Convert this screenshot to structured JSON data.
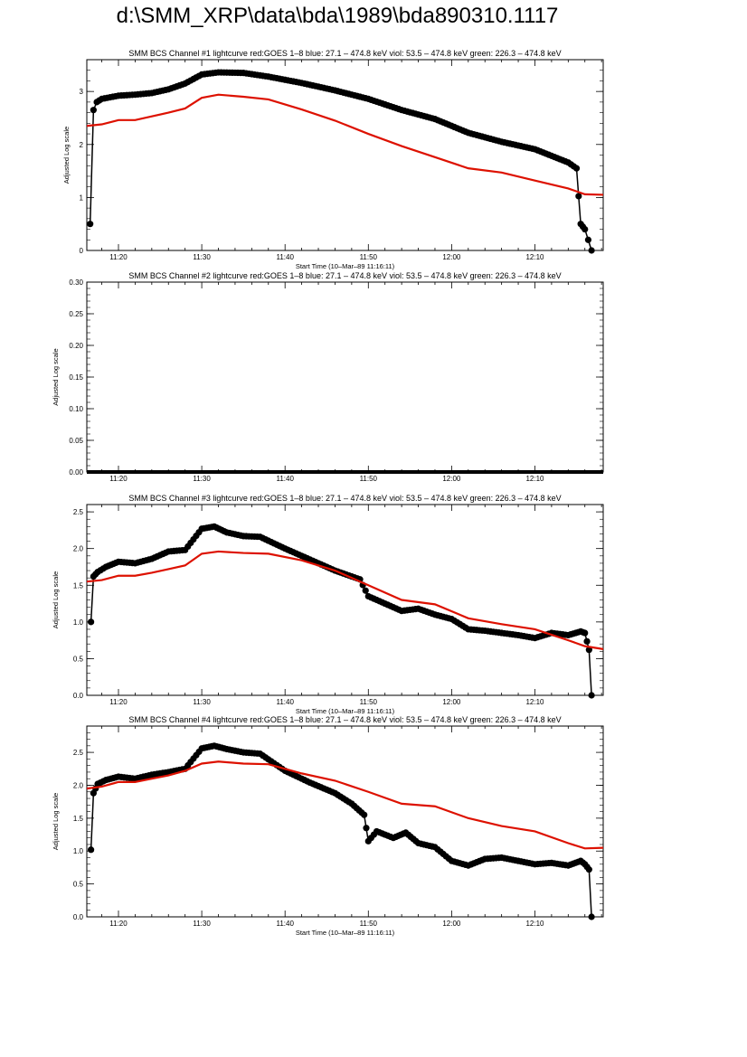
{
  "page": {
    "title": "d:\\SMM_XRP\\data\\bda\\1989\\bda890310.1117"
  },
  "legend_note": "red:GOES 1-8  blue: 27.1 – 474.8 keV  viol: 53.5 – 474.8 keV  green: 226.3 – 474.8 keV",
  "colors": {
    "goes": "#dd1100",
    "bcs": "#000000",
    "axis": "#000000"
  },
  "chart_data": [
    {
      "type": "line",
      "title": "SMM BCS Channel #1 lightcurve  red:GOES 1–8  blue: 27.1 – 474.8 keV  viol: 53.5 – 474.8 keV  green: 226.3 – 474.8 keV",
      "xlabel": "Start Time (10–Mar–89 11:16:11)",
      "ylabel": "Adjusted Log scale",
      "xlim": [
        16.2,
        78.2
      ],
      "ylim": [
        0,
        3.6
      ],
      "xticks": [
        "11:20",
        "11:30",
        "11:40",
        "11:50",
        "12:00",
        "12:10"
      ],
      "yticks": [
        "0",
        "1",
        "2",
        "3"
      ],
      "series": [
        {
          "style": "markers",
          "color": "#000000",
          "x": [
            16.6,
            17.0,
            17.4,
            18.0,
            20.0,
            22.0,
            24.0,
            26.0,
            28.0,
            30.0,
            32.0,
            35.0,
            38.0,
            42.0,
            46.0,
            50.0,
            54.0,
            58.0,
            62.0,
            66.0,
            70.0,
            74.0,
            75.0,
            75.5,
            76.0,
            76.4,
            76.8
          ],
          "y": [
            0.5,
            2.65,
            2.8,
            2.86,
            2.92,
            2.94,
            2.97,
            3.04,
            3.15,
            3.32,
            3.36,
            3.35,
            3.28,
            3.16,
            3.02,
            2.86,
            2.65,
            2.48,
            2.22,
            2.05,
            1.91,
            1.66,
            1.55,
            0.5,
            0.4,
            0.2,
            0.0
          ]
        },
        {
          "style": "line",
          "color": "#dd1100",
          "x": [
            16.2,
            18.0,
            20.0,
            22.0,
            24.0,
            26.0,
            28.0,
            30.0,
            32.0,
            35.0,
            38.0,
            42.0,
            46.0,
            50.0,
            54.0,
            58.0,
            62.0,
            66.0,
            70.0,
            74.0,
            76.0,
            78.2
          ],
          "y": [
            2.35,
            2.38,
            2.46,
            2.46,
            2.53,
            2.6,
            2.68,
            2.88,
            2.94,
            2.9,
            2.85,
            2.66,
            2.45,
            2.2,
            1.97,
            1.76,
            1.55,
            1.47,
            1.32,
            1.17,
            1.06,
            1.05
          ]
        }
      ]
    },
    {
      "type": "line",
      "title": "SMM BCS Channel #2 lightcurve  red:GOES 1–8  blue: 27.1 – 474.8 keV  viol: 53.5 – 474.8 keV  green: 226.3 – 474.8 keV",
      "xlabel": "",
      "ylabel": "Adjusted Log scale",
      "xlim": [
        16.2,
        78.2
      ],
      "ylim": [
        0,
        0.3
      ],
      "xticks": [
        "11:20",
        "11:30",
        "11:40",
        "11:50",
        "12:00",
        "12:10"
      ],
      "yticks": [
        "0.00",
        "0.05",
        "0.10",
        "0.15",
        "0.20",
        "0.25",
        "0.30"
      ],
      "series": [
        {
          "style": "flat",
          "color": "#000000",
          "x": [
            16.2,
            78.2
          ],
          "y": [
            0,
            0
          ]
        }
      ]
    },
    {
      "type": "line",
      "title": "SMM BCS Channel #3 lightcurve  red:GOES 1–8  blue: 27.1 – 474.8 keV  viol: 53.5 – 474.8 keV  green: 226.3 – 474.8 keV",
      "xlabel": "Start Time (10–Mar–89 11:16:11)",
      "ylabel": "Adjusted Log scale",
      "xlim": [
        16.2,
        78.2
      ],
      "ylim": [
        0,
        2.6
      ],
      "xticks": [
        "11:20",
        "11:30",
        "11:40",
        "11:50",
        "12:00",
        "12:10"
      ],
      "yticks": [
        "0.0",
        "0.5",
        "1.0",
        "1.5",
        "2.0",
        "2.5"
      ],
      "series": [
        {
          "style": "markers",
          "color": "#000000",
          "x": [
            16.7,
            17.0,
            17.5,
            18.5,
            20.0,
            22.0,
            24.0,
            26.0,
            28.0,
            30.0,
            31.5,
            33.0,
            35.0,
            37.0,
            40.0,
            43.0,
            46.0,
            49.0,
            50.0,
            52.0,
            54.0,
            56.0,
            58.0,
            60.0,
            62.0,
            64.0,
            66.0,
            68.0,
            70.0,
            72.0,
            74.0,
            75.5,
            76.0,
            76.5,
            76.8
          ],
          "y": [
            1.0,
            1.62,
            1.68,
            1.75,
            1.82,
            1.8,
            1.86,
            1.96,
            1.98,
            2.27,
            2.3,
            2.22,
            2.17,
            2.16,
            2.0,
            1.85,
            1.7,
            1.58,
            1.35,
            1.25,
            1.15,
            1.18,
            1.1,
            1.04,
            0.9,
            0.88,
            0.85,
            0.82,
            0.78,
            0.85,
            0.82,
            0.87,
            0.85,
            0.62,
            0.0
          ]
        },
        {
          "style": "line",
          "color": "#dd1100",
          "x": [
            16.2,
            18.0,
            20.0,
            22.0,
            24.0,
            26.0,
            28.0,
            30.0,
            32.0,
            35.0,
            38.0,
            42.0,
            46.0,
            50.0,
            54.0,
            58.0,
            62.0,
            66.0,
            70.0,
            74.0,
            76.0,
            78.2
          ],
          "y": [
            1.55,
            1.57,
            1.63,
            1.63,
            1.67,
            1.72,
            1.77,
            1.93,
            1.96,
            1.94,
            1.93,
            1.84,
            1.7,
            1.5,
            1.3,
            1.24,
            1.05,
            0.97,
            0.9,
            0.75,
            0.67,
            0.63
          ]
        }
      ]
    },
    {
      "type": "line",
      "title": "SMM BCS Channel #4 lightcurve  red:GOES 1–8  blue: 27.1 – 474.8 keV  viol: 53.5 – 474.8 keV  green: 226.3 – 474.8 keV",
      "xlabel": "Start Time (10–Mar–89 11:16:11)",
      "ylabel": "Adjusted Log scale",
      "xlim": [
        16.2,
        78.2
      ],
      "ylim": [
        0,
        2.9
      ],
      "xticks": [
        "11:20",
        "11:30",
        "11:40",
        "11:50",
        "12:00",
        "12:10"
      ],
      "yticks": [
        "0.0",
        "0.5",
        "1.0",
        "1.5",
        "2.0",
        "2.5"
      ],
      "series": [
        {
          "style": "markers",
          "color": "#000000",
          "x": [
            16.7,
            17.0,
            17.5,
            18.5,
            20.0,
            22.0,
            24.0,
            26.0,
            28.0,
            30.0,
            31.5,
            33.0,
            35.0,
            37.0,
            40.0,
            43.0,
            46.0,
            48.0,
            49.5,
            50.0,
            51.0,
            53.0,
            54.5,
            56.0,
            58.0,
            60.0,
            62.0,
            64.0,
            66.0,
            68.0,
            70.0,
            72.0,
            74.0,
            75.5,
            76.0,
            76.5,
            76.8
          ],
          "y": [
            1.02,
            1.88,
            2.02,
            2.08,
            2.13,
            2.1,
            2.16,
            2.2,
            2.25,
            2.56,
            2.6,
            2.55,
            2.5,
            2.48,
            2.22,
            2.04,
            1.88,
            1.72,
            1.55,
            1.15,
            1.3,
            1.2,
            1.28,
            1.12,
            1.06,
            0.85,
            0.78,
            0.88,
            0.9,
            0.85,
            0.8,
            0.82,
            0.78,
            0.85,
            0.8,
            0.72,
            0.0
          ]
        },
        {
          "style": "line",
          "color": "#dd1100",
          "x": [
            16.2,
            18.0,
            20.0,
            22.0,
            24.0,
            26.0,
            28.0,
            30.0,
            32.0,
            35.0,
            38.0,
            42.0,
            46.0,
            50.0,
            54.0,
            58.0,
            62.0,
            66.0,
            70.0,
            74.0,
            76.0,
            78.2
          ],
          "y": [
            1.95,
            1.98,
            2.05,
            2.05,
            2.1,
            2.15,
            2.22,
            2.33,
            2.36,
            2.33,
            2.32,
            2.18,
            2.07,
            1.9,
            1.72,
            1.68,
            1.5,
            1.38,
            1.3,
            1.12,
            1.04,
            1.05
          ]
        }
      ]
    }
  ]
}
